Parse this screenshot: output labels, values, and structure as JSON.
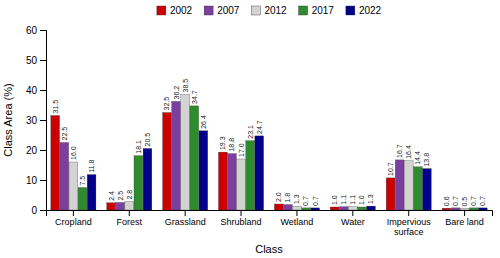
{
  "chart_data": {
    "type": "bar",
    "xlabel": "Class",
    "ylabel": "Class Area (%)",
    "categories": [
      "Cropland",
      "Forest",
      "Grassland",
      "Shrubland",
      "Wetland",
      "Water",
      "Impervious\nsurface",
      "Bare land"
    ],
    "series": [
      {
        "name": "2002",
        "color": "#cc0000",
        "values": [
          31.5,
          2.4,
          32.5,
          19.3,
          2.0,
          1.0,
          10.7,
          0.6
        ],
        "value_labels": [
          "31.5",
          "2.4",
          "32.5",
          "19.3",
          "2.0",
          "1.0",
          "10.7",
          "0.6"
        ]
      },
      {
        "name": "2007",
        "color": "#7b3fa0",
        "values": [
          22.5,
          2.5,
          36.2,
          18.8,
          1.8,
          1.1,
          16.7,
          0.7
        ],
        "value_labels": [
          "22.5",
          "2.5",
          "36.2",
          "18.8",
          "1.8",
          "1.1",
          "16.7",
          "0.7"
        ]
      },
      {
        "name": "2012",
        "color": "#d3d3d3",
        "values": [
          16.0,
          2.8,
          38.5,
          17.0,
          1.3,
          1.1,
          16.4,
          0.5
        ],
        "value_labels": [
          "16.0",
          "2.8",
          "38.5",
          "17.0",
          "1.3",
          "1.1",
          "16.4",
          "0.5"
        ]
      },
      {
        "name": "2017",
        "color": "#2e8b2e",
        "values": [
          7.5,
          18.1,
          34.7,
          23.1,
          0.7,
          1.0,
          14.4,
          0.7
        ],
        "value_labels": [
          "7.5",
          "18.1",
          "34.7",
          "23.1",
          "0.7",
          "1.0",
          "14.4",
          "0.7"
        ]
      },
      {
        "name": "2022",
        "color": "#00008b",
        "values": [
          11.8,
          20.5,
          26.4,
          24.7,
          0.7,
          1.3,
          13.8,
          0.7
        ],
        "value_labels": [
          "11.8",
          "20.5",
          "26.4",
          "24.7",
          "0.7",
          "1.3",
          "13.8",
          "0.7"
        ]
      }
    ],
    "ylim": [
      0,
      60
    ],
    "yticks": [
      0,
      10,
      20,
      30,
      40,
      50,
      60
    ],
    "data_labels": true,
    "legend": "top",
    "grid": false
  }
}
